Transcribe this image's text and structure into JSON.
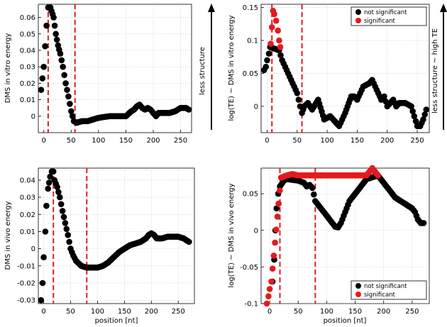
{
  "colors": {
    "not_significant": "#000000",
    "significant": "#e41a1c",
    "threshold_line": "#e41a1c"
  },
  "side_annotations": {
    "left": "less structure",
    "right": "less structure ~ high TE"
  },
  "chart_data": [
    {
      "id": "A",
      "type": "scatter",
      "title": "",
      "xlabel": "",
      "ylabel": "DMS in vitro energy",
      "xlim": [
        -10,
        270
      ],
      "ylim": [
        -0.01,
        0.068
      ],
      "xticks": [
        0,
        50,
        100,
        150,
        200,
        250
      ],
      "yticks": [
        0,
        0.01,
        0.02,
        0.03,
        0.04,
        0.05,
        0.06
      ],
      "ytick_labels": [
        "0",
        "0.01",
        "0.02",
        "0.03",
        "0.04",
        "0.05",
        "0.06"
      ],
      "grid": true,
      "vlines": [
        8,
        57
      ],
      "series": [
        {
          "name": "DMS in vitro energy",
          "keypoints": [
            [
              -5,
              0.016
            ],
            [
              0,
              0.03
            ],
            [
              5,
              0.055
            ],
            [
              8,
              0.066
            ],
            [
              12,
              0.066
            ],
            [
              18,
              0.06
            ],
            [
              22,
              0.05
            ],
            [
              26,
              0.043
            ],
            [
              30,
              0.038
            ],
            [
              35,
              0.03
            ],
            [
              40,
              0.02
            ],
            [
              45,
              0.012
            ],
            [
              50,
              0.003
            ],
            [
              55,
              -0.003
            ],
            [
              60,
              -0.004
            ],
            [
              70,
              -0.003
            ],
            [
              80,
              -0.003
            ],
            [
              90,
              -0.002
            ],
            [
              100,
              -0.001
            ],
            [
              120,
              0.0
            ],
            [
              140,
              0.0
            ],
            [
              150,
              0.0
            ],
            [
              160,
              0.003
            ],
            [
              165,
              0.004
            ],
            [
              170,
              0.006
            ],
            [
              175,
              0.007
            ],
            [
              180,
              0.005
            ],
            [
              185,
              0.004
            ],
            [
              190,
              0.005
            ],
            [
              195,
              0.004
            ],
            [
              200,
              0.002
            ],
            [
              205,
              0.0
            ],
            [
              210,
              0.002
            ],
            [
              220,
              0.002
            ],
            [
              230,
              0.002
            ],
            [
              240,
              0.003
            ],
            [
              250,
              0.005
            ],
            [
              260,
              0.005
            ],
            [
              265,
              0.004
            ]
          ]
        }
      ]
    },
    {
      "id": "B",
      "type": "scatter",
      "title": "",
      "xlabel": "",
      "ylabel": "log(TE) ~ DMS in vitro energy",
      "xlim": [
        -10,
        270
      ],
      "ylim": [
        -0.04,
        0.155
      ],
      "xticks": [
        0,
        50,
        100,
        150,
        200,
        250
      ],
      "yticks": [
        0,
        0.05,
        0.1,
        0.15
      ],
      "ytick_labels": [
        "0",
        "0.05",
        "0.1",
        "0.15"
      ],
      "grid": true,
      "vlines": [
        8,
        58
      ],
      "legend": {
        "position": "top-right",
        "entries": [
          "not significant",
          "significant"
        ]
      },
      "series": [
        {
          "name": "not significant",
          "keypoints": [
            [
              -5,
              0.055
            ],
            [
              -2,
              0.06
            ],
            [
              0,
              0.07
            ],
            [
              3,
              0.08
            ],
            [
              5,
              0.09
            ],
            [
              20,
              0.085
            ],
            [
              25,
              0.07
            ],
            [
              30,
              0.06
            ],
            [
              35,
              0.05
            ],
            [
              40,
              0.04
            ],
            [
              45,
              0.03
            ],
            [
              50,
              0.02
            ],
            [
              55,
              0.0
            ],
            [
              58,
              -0.01
            ],
            [
              62,
              0.0
            ],
            [
              68,
              0.005
            ],
            [
              75,
              -0.005
            ],
            [
              85,
              0.01
            ],
            [
              95,
              -0.02
            ],
            [
              105,
              -0.015
            ],
            [
              115,
              -0.025
            ],
            [
              120,
              -0.03
            ],
            [
              125,
              -0.02
            ],
            [
              130,
              -0.01
            ],
            [
              140,
              0.015
            ],
            [
              145,
              0.015
            ],
            [
              150,
              0.01
            ],
            [
              155,
              0.02
            ],
            [
              160,
              0.03
            ],
            [
              170,
              0.035
            ],
            [
              175,
              0.04
            ],
            [
              180,
              0.03
            ],
            [
              185,
              0.02
            ],
            [
              190,
              0.01
            ],
            [
              195,
              0.015
            ],
            [
              200,
              0.0
            ],
            [
              210,
              0.01
            ],
            [
              215,
              0.0
            ],
            [
              220,
              0.005
            ],
            [
              230,
              0.005
            ],
            [
              240,
              0.0
            ],
            [
              245,
              -0.015
            ],
            [
              250,
              -0.03
            ],
            [
              255,
              -0.03
            ],
            [
              260,
              -0.02
            ],
            [
              265,
              -0.005
            ]
          ]
        },
        {
          "name": "significant",
          "keypoints": [
            [
              6,
              0.095
            ],
            [
              8,
              0.12
            ],
            [
              10,
              0.145
            ],
            [
              12,
              0.14
            ],
            [
              15,
              0.13
            ],
            [
              18,
              0.115
            ],
            [
              20,
              0.1
            ],
            [
              22,
              0.09
            ]
          ]
        }
      ]
    },
    {
      "id": "C",
      "type": "scatter",
      "title": "",
      "xlabel": "position [nt]",
      "ylabel": "DMS in vivo energy",
      "xlim": [
        -10,
        280
      ],
      "ylim": [
        -0.032,
        0.047
      ],
      "xticks": [
        0,
        50,
        100,
        150,
        200,
        250
      ],
      "yticks": [
        -0.03,
        -0.02,
        -0.01,
        0,
        0.01,
        0.02,
        0.03,
        0.04
      ],
      "ytick_labels": [
        "-0.03",
        "-0.02",
        "-0.01",
        "0",
        "0.01",
        "0.02",
        "0.03",
        "0.04"
      ],
      "grid": true,
      "vlines": [
        18,
        80
      ],
      "series": [
        {
          "name": "DMS in vivo energy",
          "keypoints": [
            [
              -5,
              -0.03
            ],
            [
              -2,
              -0.02
            ],
            [
              0,
              -0.005
            ],
            [
              3,
              0.01
            ],
            [
              5,
              0.025
            ],
            [
              8,
              0.035
            ],
            [
              12,
              0.042
            ],
            [
              15,
              0.045
            ],
            [
              18,
              0.045
            ],
            [
              20,
              0.04
            ],
            [
              25,
              0.036
            ],
            [
              30,
              0.03
            ],
            [
              35,
              0.022
            ],
            [
              40,
              0.015
            ],
            [
              45,
              0.008
            ],
            [
              50,
              0.0
            ],
            [
              55,
              -0.004
            ],
            [
              60,
              -0.007
            ],
            [
              70,
              -0.01
            ],
            [
              80,
              -0.011
            ],
            [
              90,
              -0.011
            ],
            [
              100,
              -0.011
            ],
            [
              110,
              -0.01
            ],
            [
              120,
              -0.008
            ],
            [
              130,
              -0.005
            ],
            [
              140,
              -0.002
            ],
            [
              150,
              0.0
            ],
            [
              160,
              0.002
            ],
            [
              170,
              0.003
            ],
            [
              180,
              0.004
            ],
            [
              190,
              0.006
            ],
            [
              195,
              0.008
            ],
            [
              200,
              0.009
            ],
            [
              205,
              0.008
            ],
            [
              210,
              0.006
            ],
            [
              220,
              0.006
            ],
            [
              230,
              0.007
            ],
            [
              240,
              0.007
            ],
            [
              250,
              0.007
            ],
            [
              260,
              0.006
            ],
            [
              265,
              0.005
            ],
            [
              270,
              0.004
            ]
          ]
        }
      ]
    },
    {
      "id": "D",
      "type": "scatter",
      "title": "",
      "xlabel": "position [nt]",
      "ylabel": "log(TE) ~ DMS in vivo energy",
      "xlim": [
        -15,
        280
      ],
      "ylim": [
        -0.1,
        0.085
      ],
      "xticks": [
        0,
        50,
        100,
        150,
        200,
        250
      ],
      "yticks": [
        -0.1,
        -0.05,
        0,
        0.05
      ],
      "ytick_labels": [
        "-0.1",
        "-0.05",
        "0",
        "0.05"
      ],
      "grid": true,
      "vlines": [
        18,
        80
      ],
      "legend": {
        "position": "bottom-right",
        "entries": [
          "not significant",
          "significant"
        ]
      },
      "series": [
        {
          "name": "not significant",
          "keypoints": [
            [
              5,
              -0.07
            ],
            [
              8,
              -0.04
            ],
            [
              10,
              0.0
            ],
            [
              12,
              0.03
            ],
            [
              15,
              0.05
            ],
            [
              18,
              0.06
            ],
            [
              25,
              0.068
            ],
            [
              30,
              0.07
            ],
            [
              50,
              0.068
            ],
            [
              60,
              0.065
            ],
            [
              65,
              0.06
            ],
            [
              70,
              0.062
            ],
            [
              75,
              0.058
            ],
            [
              80,
              0.04
            ],
            [
              85,
              0.035
            ],
            [
              90,
              0.03
            ],
            [
              95,
              0.025
            ],
            [
              100,
              0.02
            ],
            [
              105,
              0.015
            ],
            [
              110,
              0.01
            ],
            [
              115,
              0.005
            ],
            [
              120,
              0.004
            ],
            [
              125,
              0.01
            ],
            [
              130,
              0.02
            ],
            [
              135,
              0.03
            ],
            [
              140,
              0.04
            ],
            [
              150,
              0.05
            ],
            [
              160,
              0.06
            ],
            [
              170,
              0.07
            ],
            [
              190,
              0.075
            ],
            [
              195,
              0.07
            ],
            [
              200,
              0.065
            ],
            [
              205,
              0.06
            ],
            [
              210,
              0.055
            ],
            [
              220,
              0.045
            ],
            [
              230,
              0.04
            ],
            [
              240,
              0.035
            ],
            [
              250,
              0.03
            ],
            [
              255,
              0.025
            ],
            [
              260,
              0.015
            ],
            [
              265,
              0.01
            ],
            [
              270,
              0.01
            ]
          ]
        },
        {
          "name": "significant",
          "keypoints": [
            [
              -5,
              -0.1
            ],
            [
              -2,
              -0.09
            ],
            [
              0,
              -0.08
            ],
            [
              3,
              -0.07
            ],
            [
              20,
              0.072
            ],
            [
              30,
              0.075
            ],
            [
              40,
              0.077
            ],
            [
              50,
              0.075
            ],
            [
              170,
              0.075
            ],
            [
              175,
              0.08
            ],
            [
              180,
              0.085
            ],
            [
              185,
              0.08
            ],
            [
              190,
              0.075
            ]
          ]
        }
      ]
    }
  ]
}
